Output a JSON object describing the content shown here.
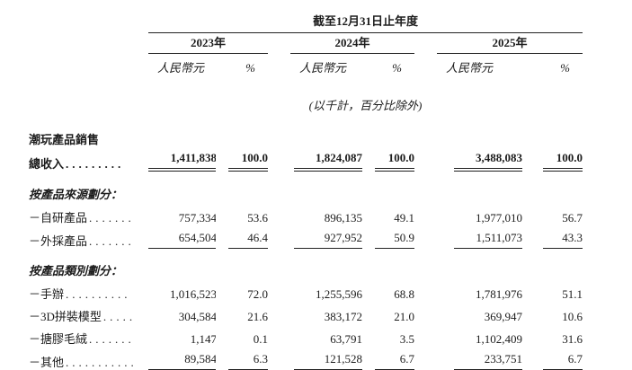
{
  "document": {
    "period_header": "截至12月31日止年度",
    "unit_note": "(以千計，百分比除外)",
    "years": [
      {
        "label": "2023年",
        "currency_header": "人民幣元",
        "pct_header": "%"
      },
      {
        "label": "2024年",
        "currency_header": "人民幣元",
        "pct_header": "%"
      },
      {
        "label": "2025年",
        "currency_header": "人民幣元",
        "pct_header": "%"
      }
    ],
    "section_title": "潮玩產品銷售",
    "total_row": {
      "label": "總收入",
      "dots": ".........",
      "values": [
        "1,411,838",
        "100.0",
        "1,824,087",
        "100.0",
        "3,488,083",
        "100.0"
      ]
    },
    "source_section": {
      "header": "按產品來源劃分：",
      "rows": [
        {
          "label": "－自研產品",
          "dots": ".......",
          "values": [
            "757,334",
            "53.6",
            "896,135",
            "49.1",
            "1,977,010",
            "56.7"
          ]
        },
        {
          "label": "－外採產品",
          "dots": ".......",
          "values": [
            "654,504",
            "46.4",
            "927,952",
            "50.9",
            "1,511,073",
            "43.3"
          ]
        }
      ]
    },
    "category_section": {
      "header": "按產品類別劃分：",
      "rows": [
        {
          "label": "－手辦",
          "dots": "..........",
          "values": [
            "1,016,523",
            "72.0",
            "1,255,596",
            "68.8",
            "1,781,976",
            "51.1"
          ]
        },
        {
          "label": "－3D拼裝模型",
          "dots": ".....",
          "values": [
            "304,584",
            "21.6",
            "383,172",
            "21.0",
            "369,947",
            "10.6"
          ]
        },
        {
          "label": "－搪膠毛絨",
          "dots": ".......",
          "values": [
            "1,147",
            "0.1",
            "63,791",
            "3.5",
            "1,102,409",
            "31.6"
          ]
        },
        {
          "label": "－其他",
          "dots": "...........",
          "values": [
            "89,584",
            "6.3",
            "121,528",
            "6.7",
            "233,751",
            "6.7"
          ]
        }
      ]
    }
  }
}
